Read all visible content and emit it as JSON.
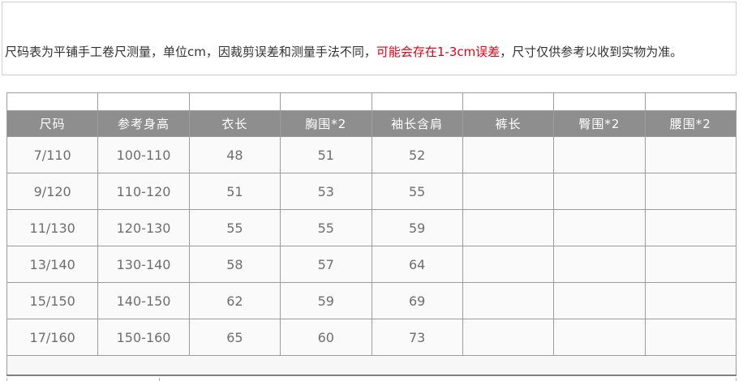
{
  "notice": {
    "text_before": "尺码表为平铺手工卷尺测量，单位cm，因裁剪误差和测量手法不同，",
    "text_highlight": "可能会存在1-3cm误差",
    "text_after": "，尺寸仅供参考以收到实物为准。",
    "highlight_color": "#e60012"
  },
  "size_table": {
    "unit": "cm",
    "header_bg": "#8e8e8e",
    "header_text_color": "#ffffff",
    "headers": [
      "尺码",
      "参考身高",
      "衣长",
      "胸围*2",
      "袖长含肩",
      "裤长",
      "臀围*2",
      "腰围*2"
    ],
    "rows": [
      [
        "7/110",
        "100-110",
        "48",
        "51",
        "52",
        "",
        "",
        ""
      ],
      [
        "9/120",
        "110-120",
        "51",
        "53",
        "55",
        "",
        "",
        ""
      ],
      [
        "11/130",
        "120-130",
        "55",
        "55",
        "59",
        "",
        "",
        ""
      ],
      [
        "13/140",
        "130-140",
        "58",
        "57",
        "64",
        "",
        "",
        ""
      ],
      [
        "15/150",
        "140-150",
        "62",
        "59",
        "69",
        "",
        "",
        ""
      ],
      [
        "17/160",
        "150-160",
        "65",
        "60",
        "73",
        "",
        "",
        ""
      ]
    ]
  }
}
